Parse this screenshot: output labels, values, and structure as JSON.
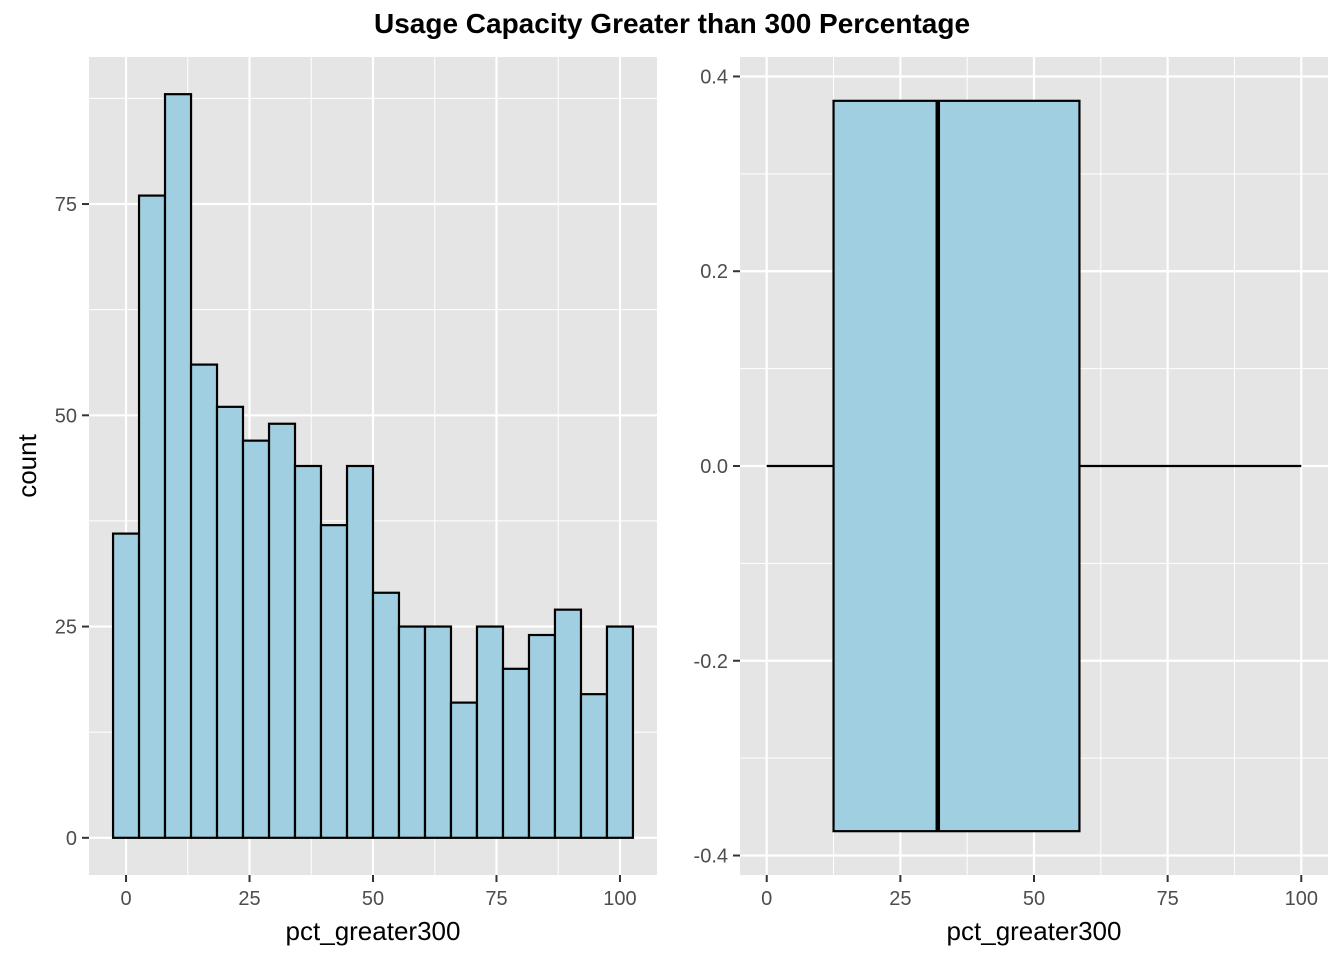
{
  "title": "Usage Capacity Greater than 300 Percentage",
  "colors": {
    "panel": "#e5e5e5",
    "grid": "#ffffff",
    "fill": "#9fcfe0",
    "stroke": "#000000"
  },
  "chart_data": [
    {
      "type": "bar",
      "subtype": "histogram",
      "xlabel": "pct_greater300",
      "ylabel": "count",
      "xlim": [
        -7.5,
        107.5
      ],
      "ylim": [
        -4.4,
        92.4
      ],
      "xticks": [
        0,
        25,
        50,
        75,
        100
      ],
      "xtick_labels": [
        "0",
        "25",
        "50",
        "75",
        "100"
      ],
      "yticks": [
        0,
        25,
        50,
        75
      ],
      "ytick_labels": [
        "0",
        "25",
        "50",
        "75"
      ],
      "bins": [
        [
          -2.63,
          2.63
        ],
        [
          2.63,
          7.89
        ],
        [
          7.89,
          13.16
        ],
        [
          13.16,
          18.42
        ],
        [
          18.42,
          23.68
        ],
        [
          23.68,
          28.95
        ],
        [
          28.95,
          34.21
        ],
        [
          34.21,
          39.47
        ],
        [
          39.47,
          44.74
        ],
        [
          44.74,
          50.0
        ],
        [
          50.0,
          55.26
        ],
        [
          55.26,
          60.53
        ],
        [
          60.53,
          65.79
        ],
        [
          65.79,
          71.05
        ],
        [
          71.05,
          76.32
        ],
        [
          76.32,
          81.58
        ],
        [
          81.58,
          86.84
        ],
        [
          86.84,
          92.11
        ],
        [
          92.11,
          97.37
        ],
        [
          97.37,
          102.63
        ]
      ],
      "values": [
        36,
        76,
        88,
        56,
        51,
        47,
        49,
        44,
        37,
        44,
        29,
        25,
        25,
        16,
        25,
        20,
        24,
        27,
        17,
        25
      ],
      "grid": true
    },
    {
      "type": "boxplot",
      "xlabel": "pct_greater300",
      "ylabel": "",
      "xlim": [
        -5,
        105
      ],
      "ylim": [
        -0.42,
        0.42
      ],
      "xticks": [
        0,
        25,
        50,
        75,
        100
      ],
      "xtick_labels": [
        "0",
        "25",
        "50",
        "75",
        "100"
      ],
      "yticks": [
        -0.4,
        -0.2,
        0.0,
        0.2,
        0.4
      ],
      "ytick_labels": [
        "-0.4",
        "-0.2",
        "0.0",
        "0.2",
        "0.4"
      ],
      "box": {
        "min": 0,
        "q1": 12.5,
        "median": 32,
        "q3": 58.5,
        "max": 100,
        "y_low": -0.375,
        "y_high": 0.375
      },
      "grid": true
    }
  ]
}
